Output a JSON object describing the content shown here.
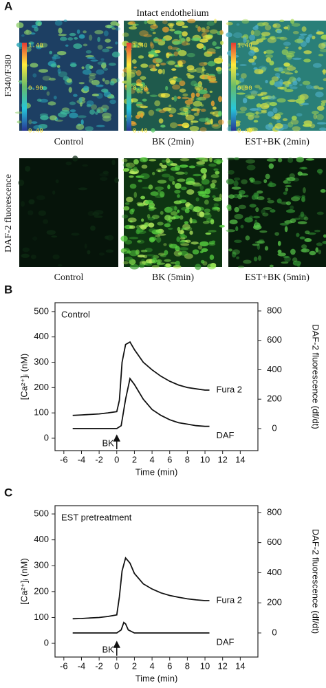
{
  "panel_a": {
    "label": "A",
    "title": "Intact endothelium",
    "row_labels": [
      "F340/F380",
      "DAF-2 fluorescence"
    ],
    "colorbar_labels": [
      "1.40",
      "0.90",
      "0.40"
    ],
    "captions_top": [
      "Control",
      "BK (2min)",
      "EST+BK (2min)"
    ],
    "captions_bottom": [
      "Control",
      "BK (5min)",
      "EST+BK (5min)"
    ]
  },
  "chart_data": [
    {
      "type": "line",
      "panel_label": "B",
      "annotation": "Control",
      "stimulus": "BK",
      "xlabel": "Time (min)",
      "ylabel": "[Ca²⁺]ᵢ (nM)",
      "y2label": "DAF-2 fluorescence (df/dt)",
      "xlim": [
        -7,
        16
      ],
      "xticks": [
        -6,
        -4,
        -2,
        0,
        2,
        4,
        6,
        8,
        10,
        12,
        14
      ],
      "ylim": [
        -49,
        535
      ],
      "yticks": [
        0,
        100,
        200,
        300,
        400,
        500
      ],
      "y2lim": [
        -150,
        856
      ],
      "y2ticks": [
        0,
        200,
        400,
        600,
        800
      ],
      "series": [
        {
          "name": "Fura 2",
          "color": "#111111",
          "axis": "y",
          "x": [
            -5,
            -4,
            -3,
            -2,
            -1,
            0,
            0.3,
            0.6,
            1,
            1.5,
            2,
            3,
            4,
            5,
            6,
            7,
            8,
            9,
            10,
            10.5
          ],
          "values": [
            90,
            92,
            94,
            96,
            100,
            105,
            150,
            300,
            370,
            380,
            350,
            300,
            270,
            245,
            225,
            210,
            200,
            195,
            190,
            190
          ]
        },
        {
          "name": "DAF",
          "color": "#111111",
          "axis": "y2",
          "x": [
            -5,
            -4,
            -3,
            -2,
            -1,
            0,
            0.5,
            1,
            1.5,
            2,
            3,
            4,
            5,
            6,
            7,
            8,
            9,
            10,
            10.5
          ],
          "values": [
            0,
            0,
            0,
            0,
            0,
            0,
            20,
            200,
            340,
            300,
            200,
            130,
            90,
            60,
            40,
            30,
            20,
            15,
            15
          ]
        }
      ]
    },
    {
      "type": "line",
      "panel_label": "C",
      "annotation": "EST pretreatment",
      "stimulus": "BK",
      "xlabel": "Time (min)",
      "ylabel": "[Ca²⁺]ᵢ (nM)",
      "y2label": "DAF-2 fluorescence (df/dt)",
      "xlim": [
        -7,
        16
      ],
      "xticks": [
        -6,
        -4,
        -2,
        0,
        2,
        4,
        6,
        8,
        10,
        12,
        14
      ],
      "ylim": [
        -53,
        532
      ],
      "yticks": [
        0,
        100,
        200,
        300,
        400,
        500
      ],
      "y2lim": [
        -160,
        845
      ],
      "y2ticks": [
        0,
        200,
        400,
        600,
        800
      ],
      "series": [
        {
          "name": "Fura 2",
          "color": "#111111",
          "axis": "y",
          "x": [
            -5,
            -4,
            -3,
            -2,
            -1,
            0,
            0.3,
            0.6,
            1,
            1.5,
            2,
            3,
            4,
            5,
            6,
            7,
            8,
            9,
            10,
            10.5
          ],
          "values": [
            95,
            96,
            98,
            100,
            104,
            110,
            180,
            280,
            330,
            310,
            270,
            230,
            210,
            195,
            185,
            178,
            172,
            168,
            165,
            165
          ]
        },
        {
          "name": "DAF",
          "color": "#111111",
          "axis": "y2",
          "x": [
            -5,
            -4,
            -3,
            -2,
            -1,
            0,
            0.5,
            0.8,
            1,
            1.3,
            2,
            4,
            6,
            8,
            10,
            10.5
          ],
          "values": [
            0,
            0,
            0,
            0,
            0,
            0,
            20,
            70,
            60,
            20,
            0,
            0,
            0,
            0,
            0,
            0
          ]
        }
      ]
    }
  ]
}
